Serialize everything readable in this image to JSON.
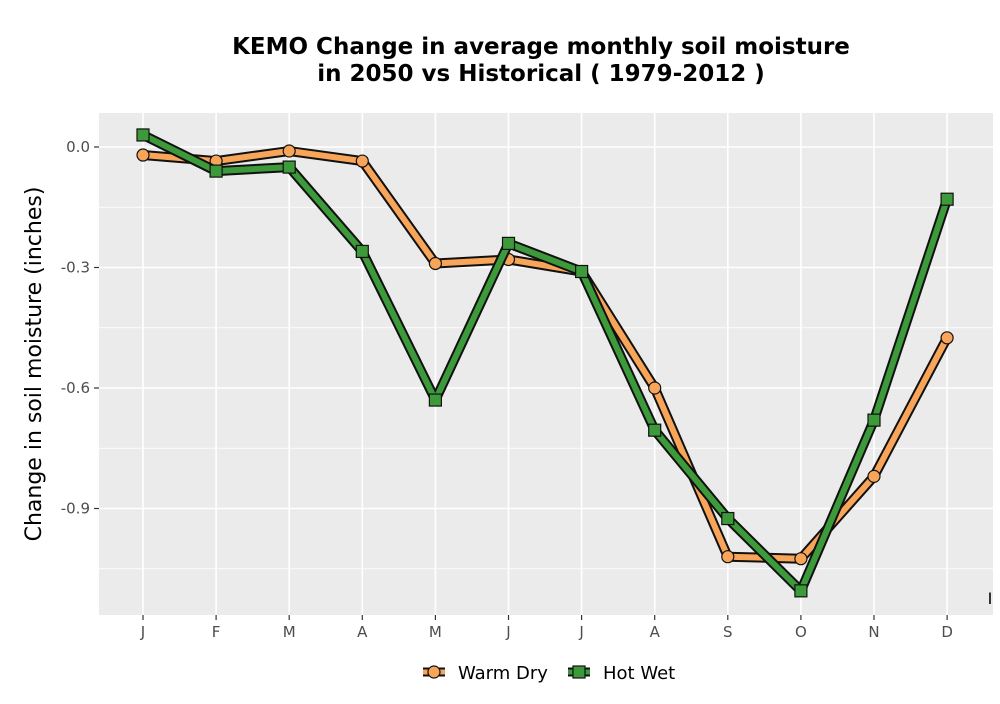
{
  "chart_data": {
    "type": "line",
    "title_lines": [
      "KEMO  Change in average monthly soil moisture",
      "in 2050 vs Historical ( 1979-2012 )"
    ],
    "xlabel": "",
    "ylabel": "Change in soil moisture (inches)",
    "categories": [
      "J",
      "F",
      "M",
      "A",
      "M",
      "J",
      "J",
      "A",
      "S",
      "O",
      "N",
      "D"
    ],
    "yticks": [
      0.0,
      -0.3,
      -0.6,
      -0.9
    ],
    "ytick_labels": [
      "0.0",
      "-0.3",
      "-0.6",
      "-0.9"
    ],
    "ylim": [
      -1.16,
      0.08
    ],
    "grid": true,
    "legend_position": "bottom",
    "edge_mark": "I",
    "series": [
      {
        "name": "Warm Dry",
        "color": "#f8a55a",
        "marker": "circle",
        "values": [
          -0.02,
          -0.035,
          -0.01,
          -0.035,
          -0.29,
          -0.28,
          -0.31,
          -0.6,
          -1.02,
          -1.025,
          -0.82,
          -0.475
        ]
      },
      {
        "name": "Hot Wet",
        "color": "#3d9a3a",
        "marker": "square",
        "values": [
          0.03,
          -0.06,
          -0.05,
          -0.26,
          -0.63,
          -0.24,
          -0.31,
          -0.705,
          -0.925,
          -1.105,
          -0.68,
          -0.13
        ]
      }
    ]
  }
}
